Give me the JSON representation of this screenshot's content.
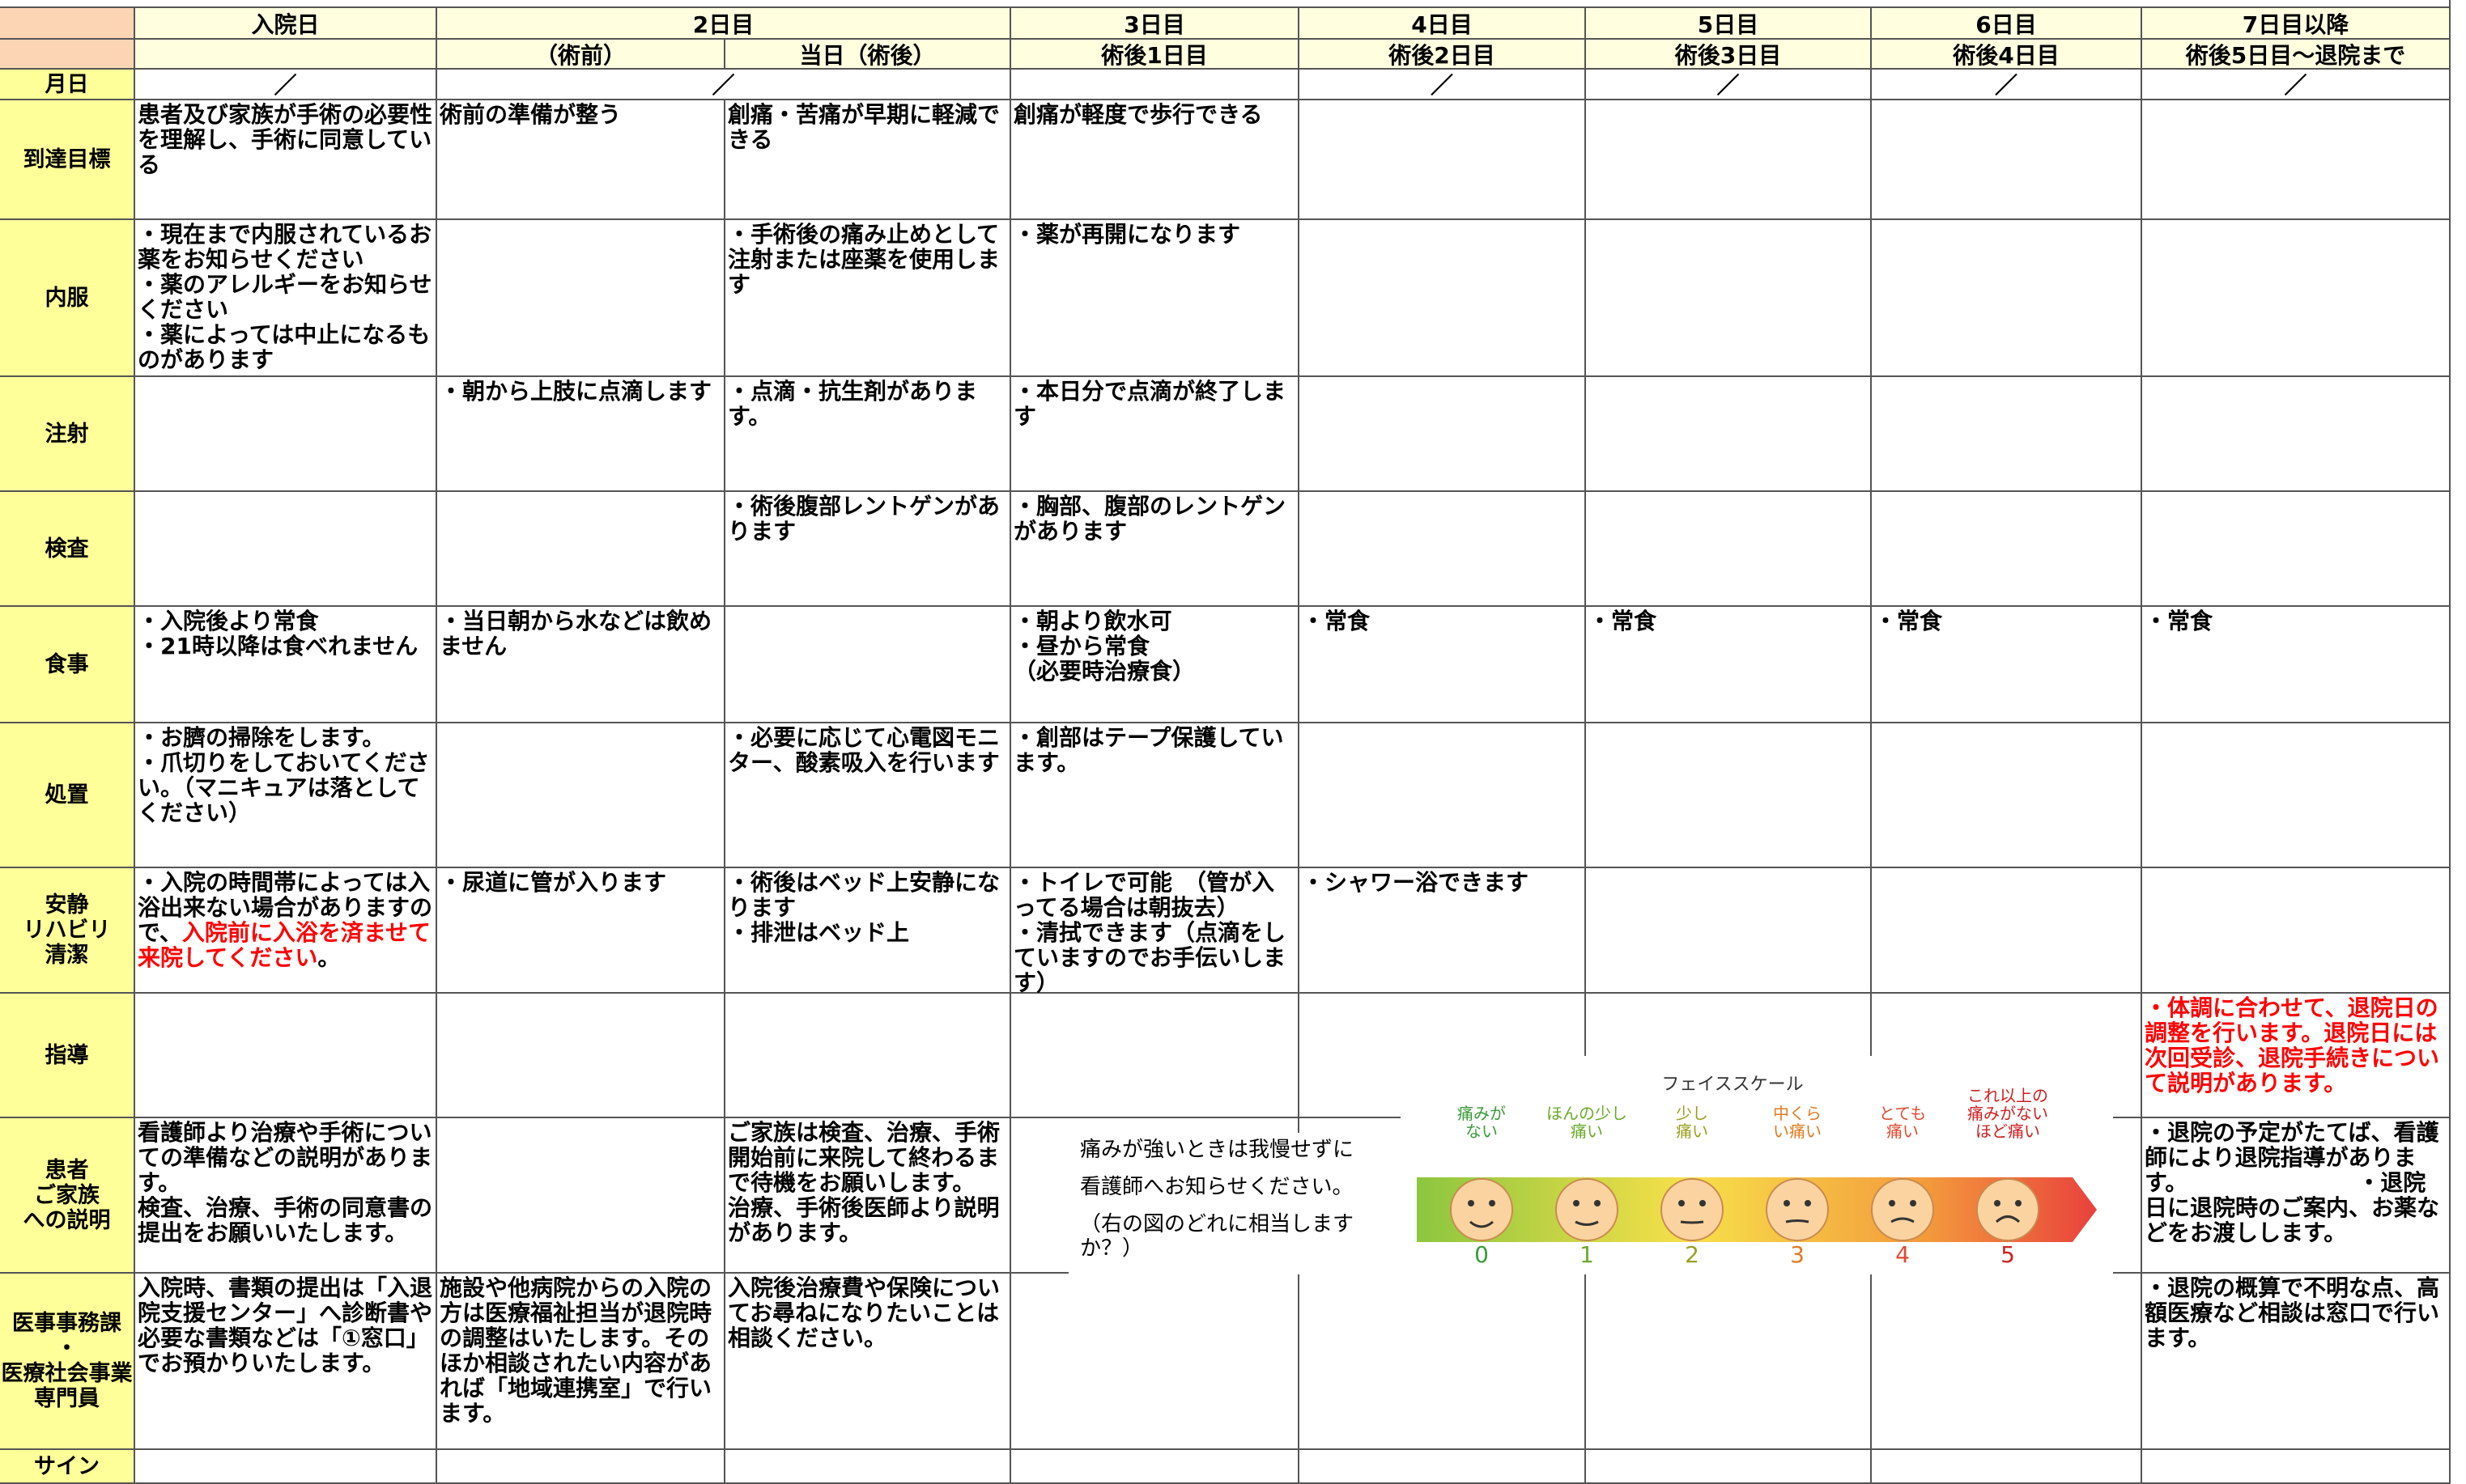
{
  "header": {
    "days": [
      "入院日",
      "2日目",
      "3日目",
      "4日目",
      "5日目",
      "6日目",
      "7日目以降"
    ],
    "phases": [
      "（術前）",
      "当日（術後）",
      "術後1日目",
      "術後2日目",
      "術後3日目",
      "術後4日目",
      "術後5日目～退院まで"
    ],
    "date_label": "月日",
    "date_marks": [
      "／",
      "／",
      "／",
      "／",
      "／",
      "／"
    ]
  },
  "rows": [
    {
      "label": "到達目標",
      "cells": [
        "患者及び家族が手術の必要性を理解し、手術に同意している",
        "術前の準備が整う",
        "創痛・苦痛が早期に軽減できる",
        "創痛が軽度で歩行できる",
        null,
        null,
        null,
        null
      ]
    },
    {
      "label": "内服",
      "cells": [
        "・現在まで内服されているお薬をお知らせください\n・薬のアレルギーをお知らせください\n・薬によっては中止になるものがあります",
        null,
        "・手術後の痛み止めとして注射または座薬を使用します",
        "・薬が再開になります",
        null,
        null,
        null,
        null
      ]
    },
    {
      "label": "注射",
      "cells": [
        null,
        "・朝から上肢に点滴します",
        "・点滴・抗生剤があります。",
        "・本日分で点滴が終了します",
        null,
        null,
        null,
        null
      ]
    },
    {
      "label": "検査",
      "cells": [
        null,
        null,
        "・術後腹部レントゲンがあります",
        "・胸部、腹部のレントゲンがあります",
        null,
        null,
        null,
        null
      ]
    },
    {
      "label": "食事",
      "cells": [
        "・入院後より常食\n・21時以降は食べれません",
        "・当日朝から水などは飲めません",
        null,
        "・朝より飲水可\n・昼から常食\n（必要時治療食）",
        "・常食",
        "・常食",
        "・常食",
        "・常食"
      ]
    },
    {
      "label": "処置",
      "cells": [
        "・お臍の掃除をします。\n・爪切りをしておいてください。（マニキュアは落としてください）",
        null,
        "・必要に応じて心電図モニター、酸素吸入を行います",
        "・創部はテープ保護しています。",
        null,
        null,
        null,
        null
      ]
    },
    {
      "label": "安静\nリハビリ\n清潔",
      "cells": [
        {
          "parts": [
            {
              "text": "・入院の時間帯によっては入浴出来ない場合がありますので、"
            },
            {
              "text": "入院前に入浴を済ませて来院してください",
              "color": "#ff0000"
            },
            {
              "text": "。"
            }
          ]
        },
        "・尿道に管が入ります",
        "・術後はベッド上安静になります\n・排泄はベッド上",
        "・トイレで可能　（管が入ってる場合は朝抜去）\n・清拭できます（点滴をしていますのでお手伝いします）",
        "・シャワー浴できます",
        null,
        null,
        null
      ]
    },
    {
      "label": "指導",
      "cells": [
        null,
        null,
        null,
        null,
        null,
        null,
        null,
        {
          "parts": [
            {
              "text": "・体調に合わせて、退院日の調整を行います。退院日には次回受診、退院手続きについて説明があります。",
              "color": "#ff0000"
            }
          ]
        }
      ]
    },
    {
      "label": "患者\nご家族\nへの説明",
      "cells": [
        "看護師より治療や手術についての準備などの説明があります。\n検査、治療、手術の同意書の提出をお願いいたします。",
        null,
        "ご家族は検査、治療、手術開始前に来院して終わるまで待機をお願いします。\n治療、手術後医師より説明があります。",
        null,
        null,
        null,
        null,
        "・退院の予定がたてば、看護師により退院指導があります。　　　　　　　　・退院日に退院時のご案内、お薬などをお渡しします。"
      ]
    },
    {
      "label": "医事事務課\n・\n医療社会事業専門員",
      "cells": [
        "入院時、書類の提出は「入退院支援センター」へ診断書や必要な書類などは「①窓口」でお預かりいたします。",
        "施設や他病院からの入院の方は医療福祉担当が退院時の調整はいたします。そのほか相談されたい内容があれば「地域連携室」で行います。",
        "入院後治療費や保険についてお尋ねになりたいことは相談ください。",
        null,
        null,
        null,
        null,
        "・退院の概算で不明な点、高額医療など相談は窓口で行います。"
      ]
    },
    {
      "label": "サイン",
      "cells": [
        null,
        null,
        null,
        null,
        null,
        null,
        null,
        null
      ]
    }
  ],
  "pain_note": [
    "痛みが強いときは我慢せずに",
    "看護師へお知らせください。",
    "（右の図のどれに相当しますか？）"
  ],
  "face_scale": {
    "title": "フェイススケール",
    "labels": [
      "痛みがない",
      "ほんの少し痛い",
      "少し痛い",
      "中くらい痛い",
      "とても痛い",
      "これ以上の痛みがないほど痛い"
    ],
    "levels": [
      0,
      1,
      2,
      3,
      4,
      5
    ]
  }
}
